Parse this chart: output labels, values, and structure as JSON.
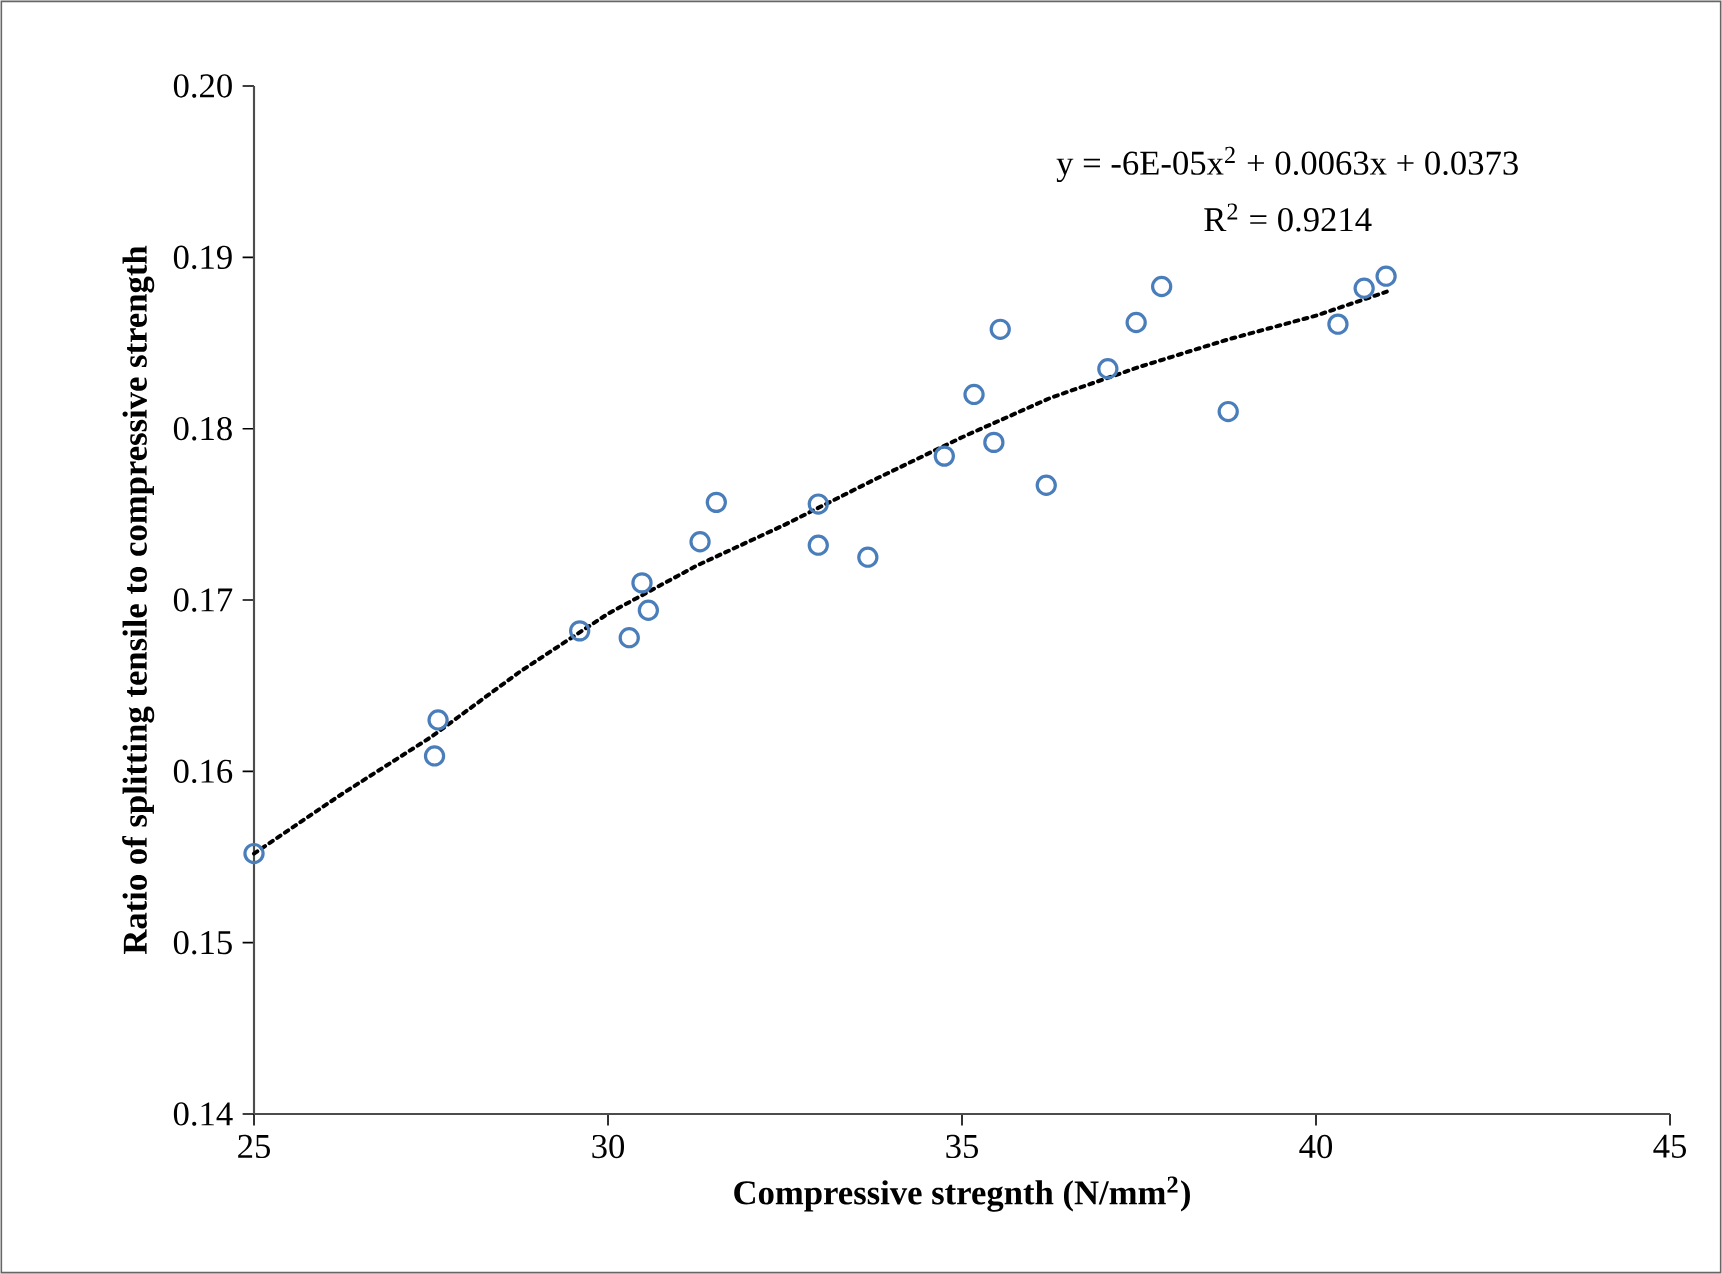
{
  "chart_data": {
    "type": "scatter",
    "xlabel": "Compressive stregnth (N/mm$^{2}$)",
    "ylabel": "Ratio of splitting  tensile to compressive strength",
    "xlim": [
      25,
      45
    ],
    "ylim": [
      0.14,
      0.2
    ],
    "xticks": [
      25,
      30,
      35,
      40,
      45
    ],
    "yticks": [
      0.14,
      0.15,
      0.16,
      0.17,
      0.18,
      0.19,
      {
        "value": 0.2,
        "label": "0.20"
      }
    ],
    "annotations": [
      "y = -6E-05x$^{2}$ + 0.0063x + 0.0373",
      "R$^{2}$ = 0.9214"
    ],
    "series": [
      {
        "marker": "circle",
        "color": "#4a7ebb",
        "x": [
          25.0,
          27.6,
          27.55,
          29.6,
          30.3,
          30.48,
          30.57,
          31.3,
          31.53,
          32.97,
          32.97,
          33.67,
          34.75,
          35.17,
          35.45,
          35.54,
          36.19,
          37.06,
          37.46,
          37.82,
          38.76,
          40.31,
          40.68,
          40.99
        ],
        "values": [
          0.1552,
          0.163,
          0.1609,
          0.1682,
          0.1678,
          0.171,
          0.1694,
          0.1734,
          0.1757,
          0.1756,
          0.1732,
          0.1725,
          0.1784,
          0.182,
          0.1792,
          0.1858,
          0.1767,
          0.1835,
          0.1862,
          0.1883,
          0.181,
          0.1861,
          0.1882,
          0.1889
        ]
      },
      {
        "type": "line",
        "marker": "none",
        "line_style": "dotted",
        "color": "#000000",
        "x": [
          25.0,
          26.25,
          27.5,
          28.75,
          30.0,
          31.25,
          32.5,
          33.75,
          35.0,
          36.25,
          37.5,
          38.75,
          40.0,
          41.0
        ],
        "values": [
          0.1552,
          0.1587,
          0.162,
          0.1658,
          0.1692,
          0.172,
          0.1744,
          0.177,
          0.1795,
          0.1818,
          0.1836,
          0.1852,
          0.1866,
          0.188
        ]
      }
    ]
  }
}
